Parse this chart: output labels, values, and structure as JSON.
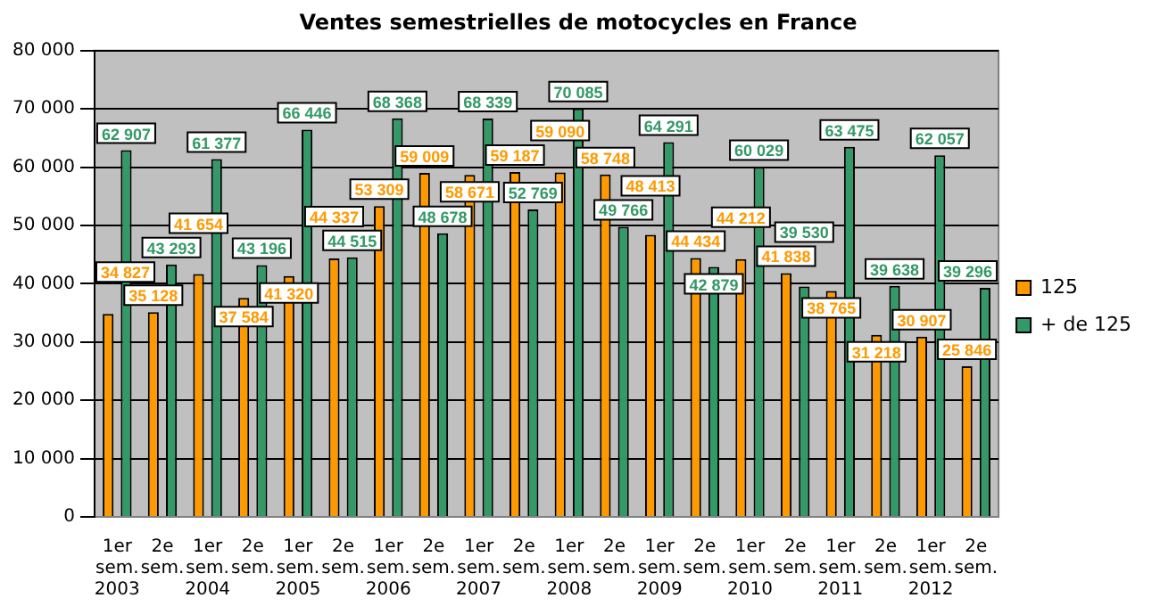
{
  "chart_data": {
    "type": "bar",
    "title": "Ventes semestrielles de motocycles en France",
    "categories": [
      "1er sem. 2003",
      "2e sem.",
      "1er sem. 2004",
      "2e sem.",
      "1er sem. 2005",
      "2e sem.",
      "1er sem. 2006",
      "2e sem.",
      "1er sem. 2007",
      "2e sem.",
      "1er sem. 2008",
      "2e sem.",
      "1er sem. 2009",
      "2e sem.",
      "1er sem. 2010",
      "2e sem.",
      "1er sem. 2011",
      "2e sem.",
      "1er sem. 2012",
      "2e sem."
    ],
    "series": [
      {
        "name": "125",
        "color": "#ff9900",
        "values": [
          34827,
          35128,
          41654,
          37584,
          41320,
          44337,
          53309,
          59009,
          58671,
          59187,
          59090,
          58748,
          48413,
          44434,
          44212,
          41838,
          38765,
          31218,
          30907,
          25846
        ],
        "value_labels": [
          "34 827",
          "35 128",
          "41 654",
          "37 584",
          "41 320",
          "44 337",
          "53 309",
          "59 009",
          "58 671",
          "59 187",
          "59 090",
          "58 748",
          "48 413",
          "44 434",
          "44 212",
          "41 838",
          "38 765",
          "31 218",
          "30 907",
          "25 846"
        ]
      },
      {
        "name": "+ de 125",
        "color": "#339966",
        "values": [
          62907,
          43293,
          61377,
          43196,
          66446,
          44515,
          68368,
          48678,
          68339,
          52769,
          70085,
          49766,
          64291,
          42879,
          60029,
          39530,
          63475,
          39638,
          62057,
          39296
        ],
        "value_labels": [
          "62 907",
          "43 293",
          "61 377",
          "43 196",
          "66 446",
          "44 515",
          "68 368",
          "48 678",
          "68 339",
          "52 769",
          "70 085",
          "49 766",
          "64 291",
          "42 879",
          "60 029",
          "39 530",
          "63 475",
          "39 638",
          "62 057",
          "39 296"
        ]
      }
    ],
    "ylim": [
      0,
      80000
    ],
    "yticks": [
      {
        "value": 0,
        "label": "0"
      },
      {
        "value": 10000,
        "label": "10 000"
      },
      {
        "value": 20000,
        "label": "20 000"
      },
      {
        "value": 30000,
        "label": "30 000"
      },
      {
        "value": 40000,
        "label": "40 000"
      },
      {
        "value": 50000,
        "label": "50 000"
      },
      {
        "value": 60000,
        "label": "60 000"
      },
      {
        "value": 70000,
        "label": "70 000"
      },
      {
        "value": 80000,
        "label": "80 000"
      }
    ],
    "grid": "y",
    "legend": "right"
  }
}
